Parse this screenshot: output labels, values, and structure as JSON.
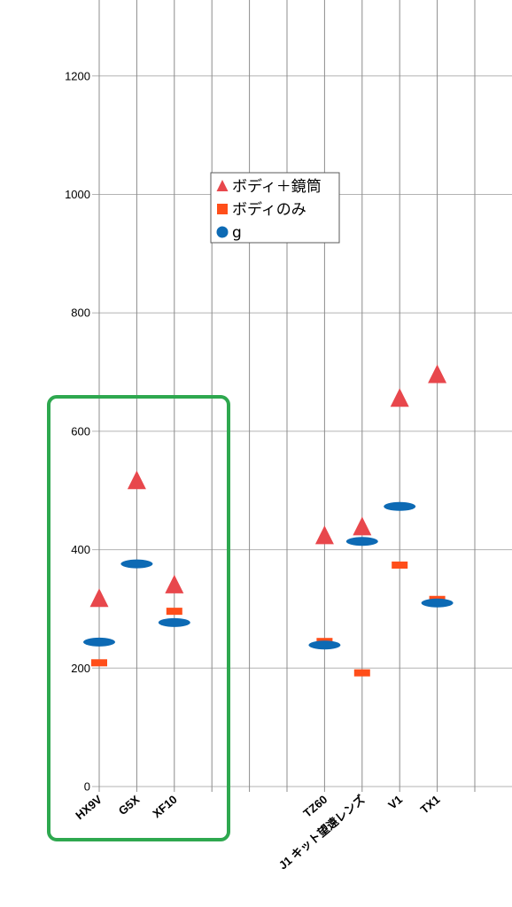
{
  "chart_data": {
    "type": "scatter",
    "categories": [
      "HX9V",
      "G5X",
      "XF10",
      "",
      "",
      "",
      "TZ60",
      "J1 キット望遠レンズ",
      "V1",
      "TX1",
      ""
    ],
    "ylim": [
      0,
      1300
    ],
    "yticks": [
      0,
      200,
      400,
      600,
      800,
      1000,
      1200
    ],
    "grid": true,
    "legend_position": "center-top",
    "series": [
      {
        "name": "ボディ＋鏡筒",
        "marker": "triangle",
        "color": "#e8474c",
        "values": [
          319,
          518,
          342,
          null,
          null,
          null,
          425,
          440,
          657,
          697,
          null
        ]
      },
      {
        "name": "ボディのみ",
        "marker": "square",
        "color": "#ff4e1a",
        "values": [
          209,
          null,
          296,
          null,
          null,
          null,
          245,
          192,
          374,
          316,
          null
        ]
      },
      {
        "name": "g",
        "marker": "ellipse",
        "color": "#0d6ab4",
        "values": [
          244,
          376,
          277,
          null,
          null,
          null,
          239,
          414,
          473,
          310,
          null
        ]
      }
    ]
  },
  "annotation": {
    "type": "highlight-box",
    "color": "#2ea84f"
  }
}
